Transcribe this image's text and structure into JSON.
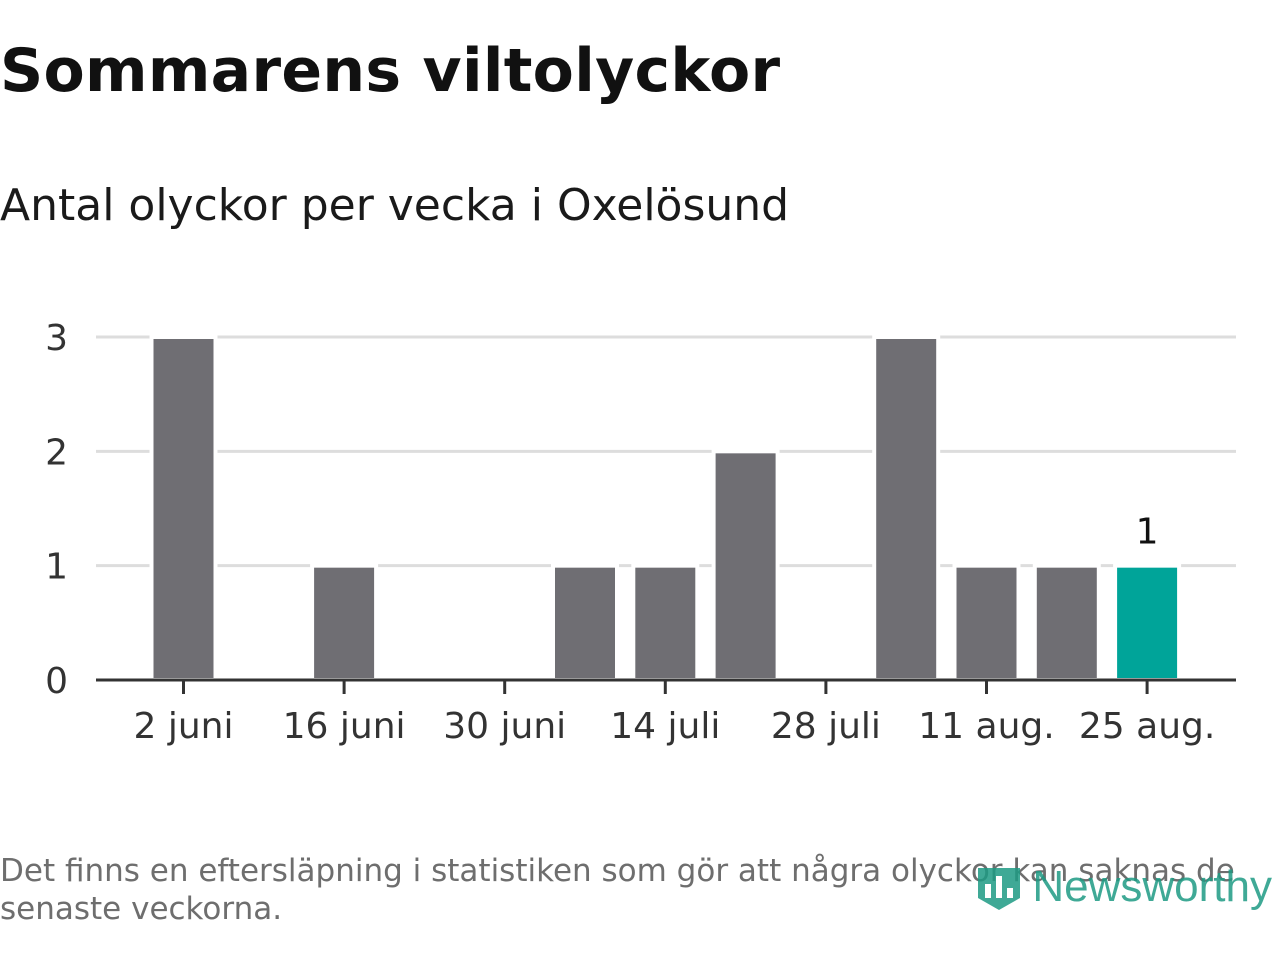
{
  "title": "Sommarens viltolyckor",
  "subtitle": "Antal olyckor per vecka i Oxelösund",
  "note": "Det finns en eftersläpning i statistiken som gör att några olyckor kan saknas de senaste veckorna.",
  "brand": {
    "name": "Newsworthy",
    "icon": "bar-chart-shield-icon",
    "color": "#1e9b84"
  },
  "colors": {
    "bar": "#6f6e73",
    "highlight": "#00a499",
    "grid": "#dddddd",
    "axis": "#333333"
  },
  "chart_data": {
    "type": "bar",
    "x": [
      "2024-06-02",
      "2024-06-09",
      "2024-06-16",
      "2024-06-23",
      "2024-06-30",
      "2024-07-07",
      "2024-07-14",
      "2024-07-21",
      "2024-07-28",
      "2024-08-04",
      "2024-08-11",
      "2024-08-18",
      "2024-08-25"
    ],
    "values": [
      3,
      0,
      1,
      0,
      0,
      1,
      1,
      2,
      0,
      3,
      1,
      1,
      1
    ],
    "highlight_index": 12,
    "highlight_label": "1",
    "yticks": [
      0,
      1,
      2,
      3
    ],
    "ylim": [
      0,
      3
    ],
    "xtick_labels": [
      "2 juni",
      "16 juni",
      "30 juni",
      "14 juli",
      "28 juli",
      "11 aug.",
      "25 aug."
    ],
    "xtick_every": 2,
    "grid": true
  }
}
